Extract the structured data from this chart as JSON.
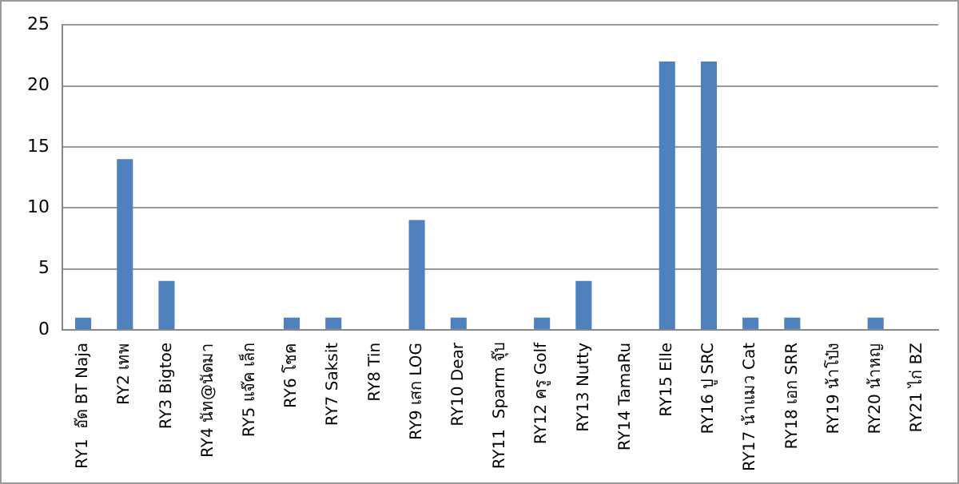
{
  "chart_data": {
    "type": "bar",
    "categories": [
      "RY1  อ๊ด BT Naja",
      "RY2 เทพ",
      "RY3 Bigtoe",
      "RY4 นัท@นัดมา",
      "RY5 แจ๊ค เล็ก",
      "RY6 โชค",
      "RY7 Saksit",
      "RY8 Tin",
      "RY9 เสก LOG",
      "RY10 Dear",
      "RY11  Sparm จุ๊บ",
      "RY12 ครู Golf",
      "RY13 Nutty",
      "RY14 TamaRu",
      "RY15 Elle",
      "RY16 ปู SRC",
      "RY17 น้าแมว Cat",
      "RY18 เอก SRR",
      "RY19 น้าโป๋ง",
      "RY20 น้าหญ",
      "RY21 ไก่ BZ"
    ],
    "values": [
      1,
      14,
      4,
      0,
      0,
      1,
      1,
      0,
      9,
      1,
      0,
      1,
      4,
      0,
      22,
      22,
      1,
      1,
      0,
      1,
      0
    ],
    "color": "#4f81bd",
    "ylim": [
      0,
      25
    ],
    "yticks": [
      0,
      5,
      10,
      15,
      20,
      25
    ],
    "grid": "y"
  }
}
